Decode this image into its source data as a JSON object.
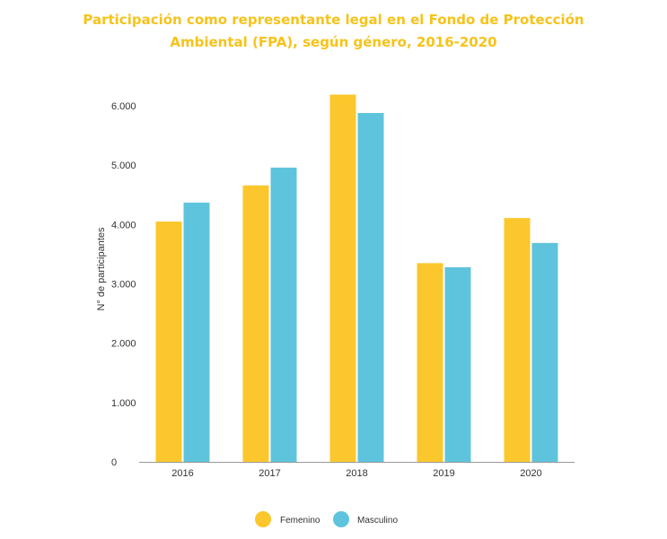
{
  "chart_data": {
    "type": "bar",
    "title_line1": "Participación como representante legal en el Fondo de Protección",
    "title_line2": "Ambiental (FPA), según género, 2016-2020",
    "xlabel": "",
    "ylabel": "N° de participantes",
    "categories": [
      "2016",
      "2017",
      "2018",
      "2019",
      "2020"
    ],
    "series": [
      {
        "name": "Femenino",
        "color": "#fcc72c",
        "values": [
          4050,
          4660,
          6190,
          3350,
          4110
        ]
      },
      {
        "name": "Masculino",
        "color": "#5ec4dd",
        "values": [
          4370,
          4960,
          5880,
          3280,
          3690
        ]
      }
    ],
    "ylim": [
      0,
      6500
    ],
    "yticks": [
      0,
      1000,
      2000,
      3000,
      4000,
      5000,
      6000
    ],
    "ytick_labels": [
      "0",
      "1.000",
      "2.000",
      "3.000",
      "4.000",
      "5.000",
      "6.000"
    ],
    "grid": false,
    "legend_position": "bottom-center"
  }
}
